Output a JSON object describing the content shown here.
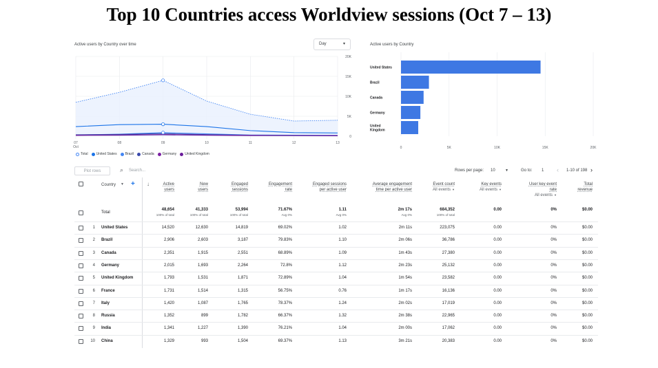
{
  "slide": {
    "title": "Top 10 Countries access Worldview sessions (Oct 7 – 13)"
  },
  "line_card": {
    "title": "Active users by Country over time",
    "dropdown": {
      "value": "Day",
      "icon": "chevron-down-icon"
    }
  },
  "bar_card": {
    "title": "Active users by Country"
  },
  "legend": [
    {
      "label": "Total",
      "color": "#4285f4",
      "hollow": true
    },
    {
      "label": "United States",
      "color": "#1a73e8"
    },
    {
      "label": "Brazil",
      "color": "#4285f4"
    },
    {
      "label": "Canada",
      "color": "#3949ab"
    },
    {
      "label": "Germany",
      "color": "#7b1fa2"
    },
    {
      "label": "United Kingdom",
      "color": "#6a1b9a"
    }
  ],
  "chart_data": [
    {
      "type": "line",
      "x": [
        "07",
        "08",
        "09",
        "10",
        "11",
        "12",
        "13"
      ],
      "x_sublabel_first": "Oct",
      "ylim": [
        0,
        20000
      ],
      "yticks": [
        "20K",
        "15K",
        "10K",
        "5K",
        "0"
      ],
      "series": [
        {
          "name": "Total",
          "values": [
            8500,
            11000,
            14000,
            8800,
            5500,
            3800,
            4000
          ]
        },
        {
          "name": "United States",
          "values": [
            2400,
            2900,
            3000,
            2400,
            1400,
            900,
            800
          ]
        },
        {
          "name": "Brazil",
          "values": [
            300,
            500,
            900,
            600,
            300,
            250,
            200
          ]
        },
        {
          "name": "Canada",
          "values": [
            350,
            450,
            650,
            400,
            250,
            200,
            150
          ]
        },
        {
          "name": "Germany",
          "values": [
            250,
            300,
            400,
            300,
            200,
            150,
            150
          ]
        },
        {
          "name": "United Kingdom",
          "values": [
            200,
            250,
            350,
            250,
            150,
            150,
            100
          ]
        }
      ]
    },
    {
      "type": "bar",
      "orientation": "horizontal",
      "categories": [
        "United States",
        "Brazil",
        "Canada",
        "Germany",
        "United\nKingdom"
      ],
      "values": [
        14520,
        2906,
        2351,
        2015,
        1793
      ],
      "xlim": [
        0,
        20000
      ],
      "xticks": [
        "0",
        "5K",
        "10K",
        "15K",
        "20K"
      ],
      "color": "#3e78e3"
    }
  ],
  "toolbar": {
    "plot_rows": "Plot rows",
    "search_placeholder": "Search...",
    "rows_per_page_label": "Rows per page:",
    "rows_per_page_value": "10",
    "goto_label": "Go to:",
    "goto_value": "1",
    "range": "1-10 of 198"
  },
  "table": {
    "dimension_label": "Country",
    "columns": [
      {
        "l1": "Active",
        "l2": "users"
      },
      {
        "l1": "New",
        "l2": "users"
      },
      {
        "l1": "Engaged",
        "l2": "sessions"
      },
      {
        "l1": "Engagement",
        "l2": "rate"
      },
      {
        "l1": "Engaged sessions",
        "l2": "per active user"
      },
      {
        "l1": "Average engagement",
        "l2": "time per active user"
      },
      {
        "l1": "Event count",
        "l2": "All events"
      },
      {
        "l1": "Key events",
        "l2": "All events"
      },
      {
        "l1": "User key event",
        "l2": "rate",
        "l3": "All events"
      },
      {
        "l1": "Total",
        "l2": "revenue"
      }
    ],
    "total": {
      "label": "Total",
      "values": [
        "48,654",
        "41,333",
        "53,994",
        "71.67%",
        "1.11",
        "2m 17s",
        "684,352",
        "0.00",
        "0%",
        "$0.00"
      ],
      "subs": [
        "100% of total",
        "100% of total",
        "100% of total",
        "Avg 0%",
        "Avg 0%",
        "Avg 0%",
        "100% of total",
        "",
        "",
        ""
      ]
    },
    "rows": [
      {
        "idx": "1",
        "name": "United States",
        "values": [
          "14,520",
          "12,630",
          "14,819",
          "69.02%",
          "1.02",
          "2m 11s",
          "223,075",
          "0.00",
          "0%",
          "$0.00"
        ]
      },
      {
        "idx": "2",
        "name": "Brazil",
        "values": [
          "2,906",
          "2,603",
          "3,187",
          "79.83%",
          "1.10",
          "2m 06s",
          "36,786",
          "0.00",
          "0%",
          "$0.00"
        ]
      },
      {
        "idx": "3",
        "name": "Canada",
        "values": [
          "2,351",
          "1,915",
          "2,551",
          "68.89%",
          "1.09",
          "1m 43s",
          "27,380",
          "0.00",
          "0%",
          "$0.00"
        ]
      },
      {
        "idx": "4",
        "name": "Germany",
        "values": [
          "2,015",
          "1,693",
          "2,264",
          "72.8%",
          "1.12",
          "2m 23s",
          "25,132",
          "0.00",
          "0%",
          "$0.00"
        ]
      },
      {
        "idx": "5",
        "name": "United Kingdom",
        "values": [
          "1,793",
          "1,531",
          "1,871",
          "72.89%",
          "1.04",
          "1m 54s",
          "23,582",
          "0.00",
          "0%",
          "$0.00"
        ]
      },
      {
        "idx": "6",
        "name": "France",
        "values": [
          "1,731",
          "1,514",
          "1,315",
          "56.75%",
          "0.76",
          "1m 17s",
          "16,136",
          "0.00",
          "0%",
          "$0.00"
        ]
      },
      {
        "idx": "7",
        "name": "Italy",
        "values": [
          "1,420",
          "1,087",
          "1,765",
          "78.37%",
          "1.24",
          "2m 02s",
          "17,019",
          "0.00",
          "0%",
          "$0.00"
        ]
      },
      {
        "idx": "8",
        "name": "Russia",
        "values": [
          "1,352",
          "899",
          "1,782",
          "66.37%",
          "1.32",
          "2m 38s",
          "22,965",
          "0.00",
          "0%",
          "$0.00"
        ]
      },
      {
        "idx": "9",
        "name": "India",
        "values": [
          "1,341",
          "1,227",
          "1,390",
          "76.21%",
          "1.04",
          "2m 00s",
          "17,062",
          "0.00",
          "0%",
          "$0.00"
        ]
      },
      {
        "idx": "10",
        "name": "China",
        "values": [
          "1,329",
          "993",
          "1,504",
          "69.37%",
          "1.13",
          "3m 21s",
          "20,383",
          "0.00",
          "0%",
          "$0.00"
        ]
      }
    ]
  }
}
